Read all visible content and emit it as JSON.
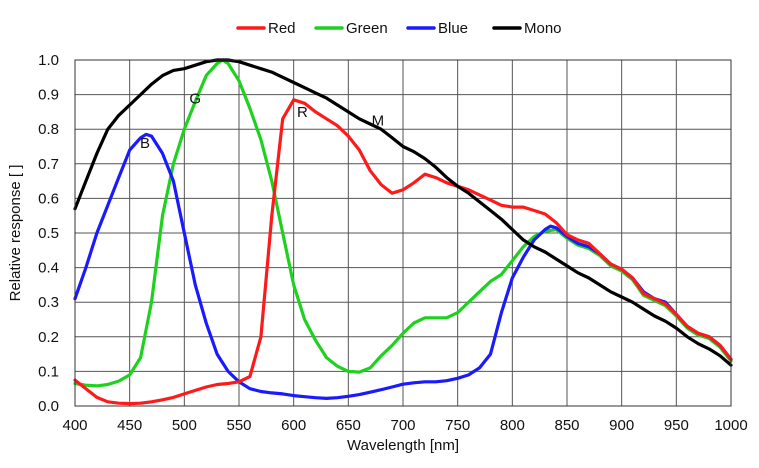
{
  "chart_data": {
    "type": "line",
    "xlabel": "Wavelength [nm]",
    "ylabel": "Relative response [ ]",
    "xlim": [
      400,
      1000
    ],
    "ylim": [
      0,
      1.0
    ],
    "x_ticks": [
      400,
      450,
      500,
      550,
      600,
      650,
      700,
      750,
      800,
      850,
      900,
      950,
      1000
    ],
    "y_ticks": [
      0.0,
      0.1,
      0.2,
      0.3,
      0.4,
      0.5,
      0.6,
      0.7,
      0.8,
      0.9,
      1.0
    ],
    "y_tick_labels": [
      "0.0",
      "0.1",
      "0.2",
      "0.3",
      "0.4",
      "0.5",
      "0.6",
      "0.7",
      "0.8",
      "0.9",
      "1.0"
    ],
    "grid": true,
    "legend_position": "top-center",
    "series": [
      {
        "name": "Red",
        "color": "#ff1a1a",
        "points": [
          [
            400,
            0.075
          ],
          [
            410,
            0.05
          ],
          [
            420,
            0.025
          ],
          [
            430,
            0.012
          ],
          [
            440,
            0.008
          ],
          [
            450,
            0.007
          ],
          [
            460,
            0.008
          ],
          [
            470,
            0.012
          ],
          [
            480,
            0.018
          ],
          [
            490,
            0.025
          ],
          [
            500,
            0.035
          ],
          [
            510,
            0.045
          ],
          [
            520,
            0.055
          ],
          [
            530,
            0.062
          ],
          [
            540,
            0.065
          ],
          [
            550,
            0.07
          ],
          [
            560,
            0.085
          ],
          [
            570,
            0.2
          ],
          [
            580,
            0.55
          ],
          [
            590,
            0.83
          ],
          [
            600,
            0.885
          ],
          [
            610,
            0.875
          ],
          [
            620,
            0.85
          ],
          [
            630,
            0.83
          ],
          [
            640,
            0.81
          ],
          [
            650,
            0.78
          ],
          [
            660,
            0.74
          ],
          [
            670,
            0.68
          ],
          [
            680,
            0.64
          ],
          [
            690,
            0.615
          ],
          [
            700,
            0.625
          ],
          [
            710,
            0.645
          ],
          [
            720,
            0.67
          ],
          [
            730,
            0.66
          ],
          [
            740,
            0.645
          ],
          [
            750,
            0.635
          ],
          [
            760,
            0.625
          ],
          [
            770,
            0.61
          ],
          [
            780,
            0.595
          ],
          [
            790,
            0.58
          ],
          [
            800,
            0.575
          ],
          [
            810,
            0.575
          ],
          [
            820,
            0.565
          ],
          [
            830,
            0.555
          ],
          [
            840,
            0.53
          ],
          [
            850,
            0.495
          ],
          [
            860,
            0.48
          ],
          [
            870,
            0.47
          ],
          [
            880,
            0.44
          ],
          [
            890,
            0.41
          ],
          [
            900,
            0.395
          ],
          [
            910,
            0.37
          ],
          [
            920,
            0.325
          ],
          [
            930,
            0.31
          ],
          [
            940,
            0.295
          ],
          [
            950,
            0.265
          ],
          [
            960,
            0.23
          ],
          [
            970,
            0.21
          ],
          [
            980,
            0.2
          ],
          [
            990,
            0.175
          ],
          [
            1000,
            0.135
          ]
        ]
      },
      {
        "name": "Green",
        "color": "#1fd11f",
        "points": [
          [
            400,
            0.065
          ],
          [
            410,
            0.06
          ],
          [
            420,
            0.058
          ],
          [
            430,
            0.062
          ],
          [
            440,
            0.072
          ],
          [
            450,
            0.09
          ],
          [
            460,
            0.14
          ],
          [
            470,
            0.3
          ],
          [
            480,
            0.55
          ],
          [
            490,
            0.7
          ],
          [
            500,
            0.8
          ],
          [
            510,
            0.88
          ],
          [
            520,
            0.955
          ],
          [
            530,
            0.99
          ],
          [
            535,
            1.0
          ],
          [
            540,
            0.99
          ],
          [
            550,
            0.94
          ],
          [
            560,
            0.86
          ],
          [
            570,
            0.77
          ],
          [
            580,
            0.65
          ],
          [
            590,
            0.5
          ],
          [
            600,
            0.35
          ],
          [
            610,
            0.25
          ],
          [
            620,
            0.19
          ],
          [
            630,
            0.14
          ],
          [
            640,
            0.115
          ],
          [
            650,
            0.1
          ],
          [
            660,
            0.098
          ],
          [
            670,
            0.11
          ],
          [
            680,
            0.145
          ],
          [
            690,
            0.175
          ],
          [
            700,
            0.21
          ],
          [
            710,
            0.24
          ],
          [
            720,
            0.255
          ],
          [
            730,
            0.255
          ],
          [
            740,
            0.255
          ],
          [
            750,
            0.27
          ],
          [
            760,
            0.3
          ],
          [
            770,
            0.33
          ],
          [
            780,
            0.36
          ],
          [
            790,
            0.38
          ],
          [
            800,
            0.42
          ],
          [
            810,
            0.46
          ],
          [
            820,
            0.49
          ],
          [
            830,
            0.505
          ],
          [
            840,
            0.51
          ],
          [
            850,
            0.485
          ],
          [
            860,
            0.465
          ],
          [
            870,
            0.455
          ],
          [
            880,
            0.435
          ],
          [
            890,
            0.405
          ],
          [
            900,
            0.39
          ],
          [
            910,
            0.365
          ],
          [
            920,
            0.32
          ],
          [
            930,
            0.305
          ],
          [
            940,
            0.29
          ],
          [
            950,
            0.26
          ],
          [
            960,
            0.225
          ],
          [
            970,
            0.205
          ],
          [
            980,
            0.195
          ],
          [
            990,
            0.17
          ],
          [
            1000,
            0.13
          ]
        ]
      },
      {
        "name": "Blue",
        "color": "#1a1aff",
        "points": [
          [
            400,
            0.31
          ],
          [
            410,
            0.4
          ],
          [
            420,
            0.5
          ],
          [
            430,
            0.58
          ],
          [
            440,
            0.66
          ],
          [
            450,
            0.74
          ],
          [
            460,
            0.775
          ],
          [
            465,
            0.785
          ],
          [
            470,
            0.78
          ],
          [
            480,
            0.73
          ],
          [
            490,
            0.65
          ],
          [
            500,
            0.5
          ],
          [
            510,
            0.35
          ],
          [
            520,
            0.24
          ],
          [
            530,
            0.15
          ],
          [
            540,
            0.1
          ],
          [
            550,
            0.07
          ],
          [
            560,
            0.05
          ],
          [
            570,
            0.042
          ],
          [
            580,
            0.038
          ],
          [
            590,
            0.035
          ],
          [
            600,
            0.03
          ],
          [
            610,
            0.027
          ],
          [
            620,
            0.024
          ],
          [
            630,
            0.022
          ],
          [
            640,
            0.024
          ],
          [
            650,
            0.028
          ],
          [
            660,
            0.033
          ],
          [
            670,
            0.04
          ],
          [
            680,
            0.047
          ],
          [
            690,
            0.055
          ],
          [
            700,
            0.063
          ],
          [
            710,
            0.067
          ],
          [
            720,
            0.07
          ],
          [
            730,
            0.07
          ],
          [
            740,
            0.073
          ],
          [
            750,
            0.08
          ],
          [
            760,
            0.09
          ],
          [
            770,
            0.11
          ],
          [
            780,
            0.15
          ],
          [
            790,
            0.27
          ],
          [
            800,
            0.37
          ],
          [
            810,
            0.43
          ],
          [
            820,
            0.48
          ],
          [
            830,
            0.51
          ],
          [
            835,
            0.52
          ],
          [
            840,
            0.515
          ],
          [
            850,
            0.49
          ],
          [
            860,
            0.47
          ],
          [
            870,
            0.46
          ],
          [
            880,
            0.44
          ],
          [
            890,
            0.41
          ],
          [
            900,
            0.395
          ],
          [
            910,
            0.37
          ],
          [
            920,
            0.33
          ],
          [
            930,
            0.31
          ],
          [
            940,
            0.3
          ],
          [
            950,
            0.265
          ],
          [
            960,
            0.23
          ],
          [
            970,
            0.21
          ],
          [
            980,
            0.2
          ],
          [
            990,
            0.175
          ],
          [
            1000,
            0.135
          ]
        ]
      },
      {
        "name": "Mono",
        "color": "#000000",
        "points": [
          [
            400,
            0.57
          ],
          [
            410,
            0.65
          ],
          [
            420,
            0.73
          ],
          [
            430,
            0.8
          ],
          [
            440,
            0.84
          ],
          [
            450,
            0.87
          ],
          [
            460,
            0.9
          ],
          [
            470,
            0.93
          ],
          [
            480,
            0.955
          ],
          [
            490,
            0.97
          ],
          [
            500,
            0.975
          ],
          [
            510,
            0.985
          ],
          [
            520,
            0.995
          ],
          [
            530,
            1.0
          ],
          [
            540,
            1.0
          ],
          [
            550,
            0.995
          ],
          [
            560,
            0.985
          ],
          [
            570,
            0.975
          ],
          [
            580,
            0.965
          ],
          [
            590,
            0.95
          ],
          [
            600,
            0.935
          ],
          [
            610,
            0.92
          ],
          [
            620,
            0.905
          ],
          [
            630,
            0.89
          ],
          [
            640,
            0.87
          ],
          [
            650,
            0.85
          ],
          [
            660,
            0.83
          ],
          [
            670,
            0.815
          ],
          [
            680,
            0.8
          ],
          [
            690,
            0.775
          ],
          [
            700,
            0.75
          ],
          [
            710,
            0.735
          ],
          [
            720,
            0.715
          ],
          [
            730,
            0.69
          ],
          [
            740,
            0.66
          ],
          [
            750,
            0.635
          ],
          [
            760,
            0.615
          ],
          [
            770,
            0.59
          ],
          [
            780,
            0.565
          ],
          [
            790,
            0.54
          ],
          [
            800,
            0.51
          ],
          [
            810,
            0.48
          ],
          [
            820,
            0.46
          ],
          [
            830,
            0.445
          ],
          [
            840,
            0.425
          ],
          [
            850,
            0.405
          ],
          [
            860,
            0.385
          ],
          [
            870,
            0.37
          ],
          [
            880,
            0.35
          ],
          [
            890,
            0.33
          ],
          [
            900,
            0.315
          ],
          [
            910,
            0.3
          ],
          [
            920,
            0.28
          ],
          [
            930,
            0.26
          ],
          [
            940,
            0.245
          ],
          [
            950,
            0.225
          ],
          [
            960,
            0.2
          ],
          [
            970,
            0.18
          ],
          [
            980,
            0.165
          ],
          [
            990,
            0.145
          ],
          [
            1000,
            0.118
          ]
        ]
      }
    ],
    "annotations": [
      {
        "text": "R",
        "x": 608,
        "y": 0.835
      },
      {
        "text": "G",
        "x": 510,
        "y": 0.875
      },
      {
        "text": "B",
        "x": 464,
        "y": 0.745
      },
      {
        "text": "M",
        "x": 677,
        "y": 0.81
      }
    ]
  }
}
